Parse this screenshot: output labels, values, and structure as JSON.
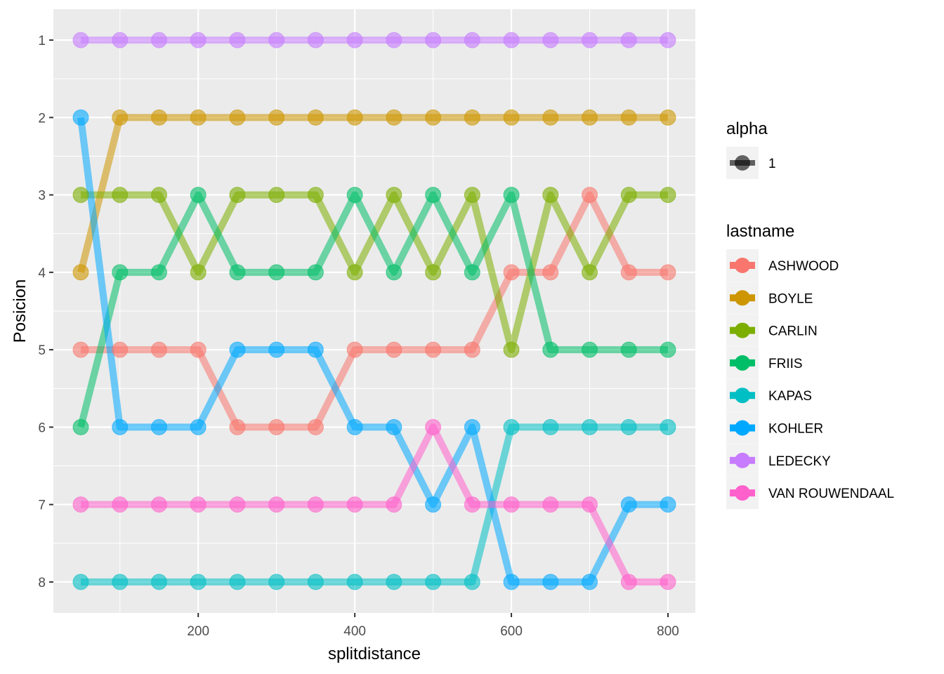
{
  "chart_data": {
    "type": "line",
    "title": "",
    "xlabel": "splitdistance",
    "ylabel": "Posicion",
    "xlim": [
      15,
      835
    ],
    "ylim": [
      0.6,
      8.4
    ],
    "y_reversed": true,
    "x_ticks": [
      200,
      400,
      600,
      800
    ],
    "x_tick_labels": [
      "200",
      "400",
      "600",
      "800"
    ],
    "y_ticks": [
      1,
      2,
      3,
      4,
      5,
      6,
      7,
      8
    ],
    "y_tick_labels": [
      "1",
      "2",
      "3",
      "4",
      "5",
      "6",
      "7",
      "8"
    ],
    "grid": true,
    "legend_position": "right",
    "legend_alpha": {
      "title": "alpha",
      "label": "1"
    },
    "legend_title": "lastname",
    "x": [
      50,
      100,
      150,
      200,
      250,
      300,
      350,
      400,
      450,
      500,
      550,
      600,
      650,
      700,
      750,
      800
    ],
    "series": [
      {
        "name": "ASHWOOD",
        "color": "#F8766D",
        "values": [
          5,
          5,
          5,
          5,
          6,
          6,
          6,
          5,
          5,
          5,
          5,
          4,
          4,
          3,
          4,
          4
        ]
      },
      {
        "name": "BOYLE",
        "color": "#CD9600",
        "values": [
          4,
          2,
          2,
          2,
          2,
          2,
          2,
          2,
          2,
          2,
          2,
          2,
          2,
          2,
          2,
          2
        ]
      },
      {
        "name": "CARLIN",
        "color": "#7CAE00",
        "values": [
          3,
          3,
          3,
          4,
          3,
          3,
          3,
          4,
          3,
          4,
          3,
          5,
          3,
          4,
          3,
          3
        ]
      },
      {
        "name": "FRIIS",
        "color": "#00BE67",
        "values": [
          6,
          4,
          4,
          3,
          4,
          4,
          4,
          3,
          4,
          3,
          4,
          3,
          5,
          5,
          5,
          5
        ]
      },
      {
        "name": "KAPAS",
        "color": "#00BFC4",
        "values": [
          8,
          8,
          8,
          8,
          8,
          8,
          8,
          8,
          8,
          8,
          8,
          6,
          6,
          6,
          6,
          6
        ]
      },
      {
        "name": "KOHLER",
        "color": "#00A9FF",
        "values": [
          2,
          6,
          6,
          6,
          5,
          5,
          5,
          6,
          6,
          7,
          6,
          8,
          8,
          8,
          7,
          7
        ]
      },
      {
        "name": "LEDECKY",
        "color": "#C77CFF",
        "values": [
          1,
          1,
          1,
          1,
          1,
          1,
          1,
          1,
          1,
          1,
          1,
          1,
          1,
          1,
          1,
          1
        ]
      },
      {
        "name": "VAN ROUWENDAAL",
        "color": "#FF61CC",
        "values": [
          7,
          7,
          7,
          7,
          7,
          7,
          7,
          7,
          7,
          6,
          7,
          7,
          7,
          7,
          8,
          8
        ]
      }
    ]
  }
}
